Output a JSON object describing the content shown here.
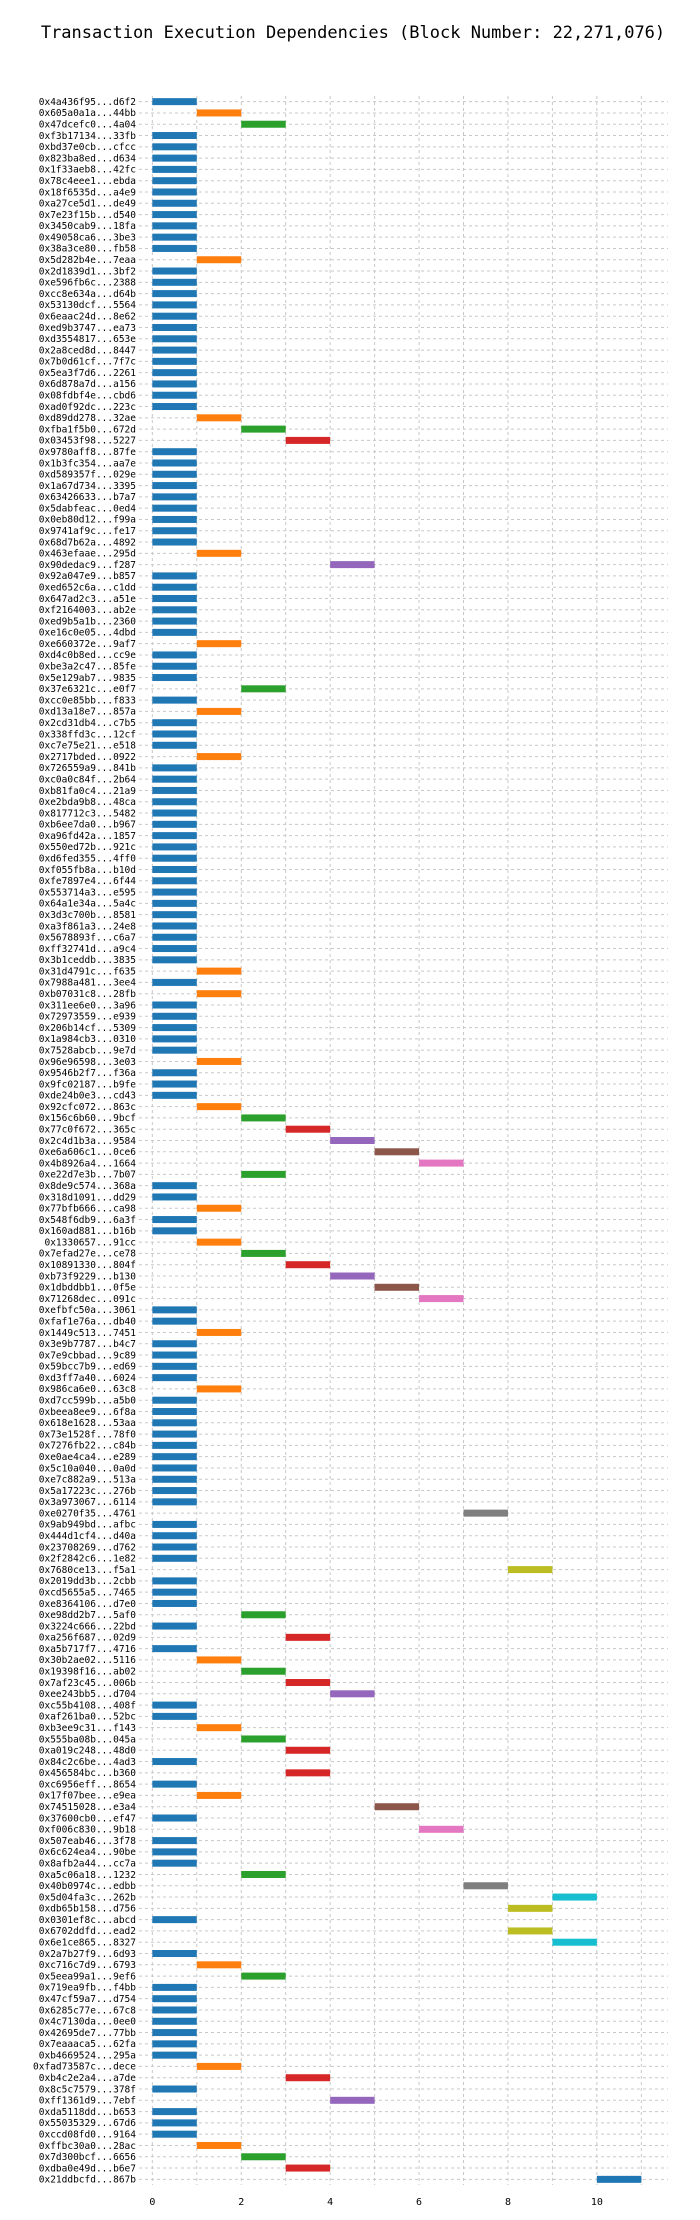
{
  "chart_data": {
    "type": "bar",
    "orientation": "horizontal",
    "title": "Transaction Execution Dependencies (Block Number: 22,271,076)",
    "xlabel": "",
    "ylabel": "",
    "xlim": [
      -0.3,
      11.6
    ],
    "xticks": [
      0,
      2,
      4,
      6,
      8,
      10
    ],
    "grid": true,
    "colors": [
      "#1f77b4",
      "#ff7f0e",
      "#2ca02c",
      "#d62728",
      "#9467bd",
      "#8c564b",
      "#e377c2",
      "#7f7f7f",
      "#bcbd22",
      "#17becf"
    ],
    "tx": [
      [
        "0x4a436f95...d6f2",
        0
      ],
      [
        "0x605a0a1a...44bb",
        1
      ],
      [
        "0x47dcefc0...4a04",
        2
      ],
      [
        "0xf3b17134...33fb",
        0
      ],
      [
        "0xbd37e0cb...cfcc",
        0
      ],
      [
        "0x823ba8ed...d634",
        0
      ],
      [
        "0x1f33aeb8...42fc",
        0
      ],
      [
        "0x78c4eee1...ebda",
        0
      ],
      [
        "0x18f6535d...a4e9",
        0
      ],
      [
        "0xa27ce5d1...de49",
        0
      ],
      [
        "0x7e23f15b...d540",
        0
      ],
      [
        "0x3450cab9...18fa",
        0
      ],
      [
        "0x49058ca6...3be3",
        0
      ],
      [
        "0x38a3ce80...fb58",
        0
      ],
      [
        "0x5d282b4e...7eaa",
        1
      ],
      [
        "0x2d1839d1...3bf2",
        0
      ],
      [
        "0xe596fb6c...2388",
        0
      ],
      [
        "0xcc8e634a...d64b",
        0
      ],
      [
        "0x53130dcf...5564",
        0
      ],
      [
        "0x6eaac24d...8e62",
        0
      ],
      [
        "0xed9b3747...ea73",
        0
      ],
      [
        "0xd3554817...653e",
        0
      ],
      [
        "0x2a8ced8d...8447",
        0
      ],
      [
        "0x7b0d61cf...7f7c",
        0
      ],
      [
        "0x5ea3f7d6...2261",
        0
      ],
      [
        "0x6d878a7d...a156",
        0
      ],
      [
        "0x08fdbf4e...cbd6",
        0
      ],
      [
        "0xad0f92dc...223c",
        0
      ],
      [
        "0xd89dd278...32ae",
        1
      ],
      [
        "0xfba1f5b0...672d",
        2
      ],
      [
        "0x03453f98...5227",
        3
      ],
      [
        "0x9780aff8...87fe",
        0
      ],
      [
        "0x1b3fc354...aa7e",
        0
      ],
      [
        "0xd589357f...029e",
        0
      ],
      [
        "0x1a67d734...3395",
        0
      ],
      [
        "0x63426633...b7a7",
        0
      ],
      [
        "0x5dabfeac...0ed4",
        0
      ],
      [
        "0x0eb80d12...f99a",
        0
      ],
      [
        "0x9741af9c...fe17",
        0
      ],
      [
        "0x68d7b62a...4892",
        0
      ],
      [
        "0x463efaae...295d",
        1
      ],
      [
        "0x90dedac9...f287",
        4
      ],
      [
        "0x92a047e9...b857",
        0
      ],
      [
        "0xed652c6a...c1dd",
        0
      ],
      [
        "0x647ad2c3...a51e",
        0
      ],
      [
        "0xf2164003...ab2e",
        0
      ],
      [
        "0xed9b5a1b...2360",
        0
      ],
      [
        "0xe16c0e05...4dbd",
        0
      ],
      [
        "0xe660372e...9af7",
        1
      ],
      [
        "0xd4c0b8ed...cc9e",
        0
      ],
      [
        "0xbe3a2c47...85fe",
        0
      ],
      [
        "0x5e129ab7...9835",
        0
      ],
      [
        "0x37e6321c...e0f7",
        2
      ],
      [
        "0xcc0e85bb...f833",
        0
      ],
      [
        "0xd13a18e7...857a",
        1
      ],
      [
        "0x2cd31db4...c7b5",
        0
      ],
      [
        "0x338ffd3c...12cf",
        0
      ],
      [
        "0xc7e75e21...e518",
        0
      ],
      [
        "0x2717bded...0922",
        1
      ],
      [
        "0x726559a9...841b",
        0
      ],
      [
        "0xc0a0c84f...2b64",
        0
      ],
      [
        "0xb81fa0c4...21a9",
        0
      ],
      [
        "0xe2bda9b8...48ca",
        0
      ],
      [
        "0x817712c3...5482",
        0
      ],
      [
        "0xb6ee7da0...b967",
        0
      ],
      [
        "0xa96fd42a...1857",
        0
      ],
      [
        "0x550ed72b...921c",
        0
      ],
      [
        "0xd6fed355...4ff0",
        0
      ],
      [
        "0xf055fb8a...b10d",
        0
      ],
      [
        "0xfe7897e4...6f44",
        0
      ],
      [
        "0x553714a3...e595",
        0
      ],
      [
        "0x64a1e34a...5a4c",
        0
      ],
      [
        "0x3d3c700b...8581",
        0
      ],
      [
        "0xa3f861a3...24e8",
        0
      ],
      [
        "0x5678893f...c6a7",
        0
      ],
      [
        "0xff32741d...a9c4",
        0
      ],
      [
        "0x3b1ceddb...3835",
        0
      ],
      [
        "0x31d4791c...f635",
        1
      ],
      [
        "0x7988a481...3ee4",
        0
      ],
      [
        "0xb07031c8...28fb",
        1
      ],
      [
        "0x311ee6e0...3a96",
        0
      ],
      [
        "0x72973559...e939",
        0
      ],
      [
        "0x206b14cf...5309",
        0
      ],
      [
        "0x1a984cb3...0310",
        0
      ],
      [
        "0x7528abcb...9e7d",
        0
      ],
      [
        "0x96e96598...3e03",
        1
      ],
      [
        "0x9546b2f7...f36a",
        0
      ],
      [
        "0x9fc02187...b9fe",
        0
      ],
      [
        "0xde24b0e3...cd43",
        0
      ],
      [
        "0x92cfc072...863c",
        1
      ],
      [
        "0x156c6b60...9bcf",
        2
      ],
      [
        "0x77c0f672...365c",
        3
      ],
      [
        "0x2c4d1b3a...9584",
        4
      ],
      [
        "0xe6a606c1...0ce6",
        5
      ],
      [
        "0x4b8926a4...1664",
        6
      ],
      [
        "0xe22d7e3b...7b07",
        2
      ],
      [
        "0x8de9c574...368a",
        0
      ],
      [
        "0x318d1091...dd29",
        0
      ],
      [
        "0x77bfb666...ca98",
        1
      ],
      [
        "0x548f6db9...6a3f",
        0
      ],
      [
        "0x160ad881...b16b",
        0
      ],
      [
        "0x1330657...91cc",
        1
      ],
      [
        "0x7efad27e...ce78",
        2
      ],
      [
        "0x10891330...804f",
        3
      ],
      [
        "0xb73f9229...b130",
        4
      ],
      [
        "0x1dbddbb1...0f5e",
        5
      ],
      [
        "0x71268dec...091c",
        6
      ],
      [
        "0xefbfc50a...3061",
        0
      ],
      [
        "0xfaf1e76a...db40",
        0
      ],
      [
        "0x1449c513...7451",
        1
      ],
      [
        "0x3e9b7787...b4c7",
        0
      ],
      [
        "0x7e9cbbad...9c89",
        0
      ],
      [
        "0x59bcc7b9...ed69",
        0
      ],
      [
        "0xd3ff7a40...6024",
        0
      ],
      [
        "0x986ca6e0...63c8",
        1
      ],
      [
        "0xd7cc599b...a5b0",
        0
      ],
      [
        "0xbeea8ee9...6f8a",
        0
      ],
      [
        "0x618e1628...53aa",
        0
      ],
      [
        "0x73e1528f...78f0",
        0
      ],
      [
        "0x7276fb22...c84b",
        0
      ],
      [
        "0xe0ae4ca4...e289",
        0
      ],
      [
        "0x5c10a040...0a0d",
        0
      ],
      [
        "0xe7c882a9...513a",
        0
      ],
      [
        "0x5a17223c...276b",
        0
      ],
      [
        "0x3a973067...6114",
        0
      ],
      [
        "0xe0270f35...4761",
        7
      ],
      [
        "0x9ab949bd...afbc",
        0
      ],
      [
        "0x444d1cf4...d40a",
        0
      ],
      [
        "0x23708269...d762",
        0
      ],
      [
        "0x2f2842c6...1e82",
        0
      ],
      [
        "0x7680ce13...f5a1",
        8
      ],
      [
        "0x2019dd3b...2cbb",
        0
      ],
      [
        "0xcd5655a5...7465",
        0
      ],
      [
        "0xe8364106...d7e0",
        0
      ],
      [
        "0xe98dd2b7...5af0",
        2
      ],
      [
        "0x3224c666...22bd",
        0
      ],
      [
        "0xa256f687...02d9",
        3
      ],
      [
        "0xa5b717f7...4716",
        0
      ],
      [
        "0x30b2ae02...5116",
        1
      ],
      [
        "0x19398f16...ab02",
        2
      ],
      [
        "0x7af23c45...006b",
        3
      ],
      [
        "0xee243bb5...d704",
        4
      ],
      [
        "0xc55b4108...408f",
        0
      ],
      [
        "0xaf261ba0...52bc",
        0
      ],
      [
        "0xb3ee9c31...f143",
        1
      ],
      [
        "0x555ba08b...045a",
        2
      ],
      [
        "0xa019c248...48d0",
        3
      ],
      [
        "0x84c2c6be...4ad3",
        0
      ],
      [
        "0x456584bc...b360",
        3
      ],
      [
        "0xc6956eff...8654",
        0
      ],
      [
        "0x17f07bee...e9ea",
        1
      ],
      [
        "0x74515028...e3a4",
        5
      ],
      [
        "0x37600cb0...ef47",
        0
      ],
      [
        "0xf006c830...9b18",
        6
      ],
      [
        "0x507eab46...3f78",
        0
      ],
      [
        "0x6c624ea4...90be",
        0
      ],
      [
        "0x8afb2a44...cc7a",
        0
      ],
      [
        "0xa5c06a18...1232",
        2
      ],
      [
        "0x40b0974c...edbb",
        7
      ],
      [
        "0x5d04fa3c...262b",
        9
      ],
      [
        "0xdb65b158...d756",
        8
      ],
      [
        "0x0301ef8c...abcd",
        0
      ],
      [
        "0x6702ddfd...ead2",
        8
      ],
      [
        "0x6e1ce865...8327",
        9
      ],
      [
        "0x2a7b27f9...6d93",
        0
      ],
      [
        "0xc716c7d9...6793",
        1
      ],
      [
        "0x5eea99a1...9ef6",
        2
      ],
      [
        "0x719ea9fb...f4bb",
        0
      ],
      [
        "0x47cf59a7...d754",
        0
      ],
      [
        "0x6285c77e...67c8",
        0
      ],
      [
        "0x4c7130da...0ee0",
        0
      ],
      [
        "0x42695de7...77bb",
        0
      ],
      [
        "0x7eaaaca5...62fa",
        0
      ],
      [
        "0xb4669524...295a",
        0
      ],
      [
        "0xfad73587c...dece",
        1
      ],
      [
        "0xb4c2e2a4...a7de",
        3
      ],
      [
        "0x8c5c7579...378f",
        0
      ],
      [
        "0xff1361d9...7ebf",
        4
      ],
      [
        "0xda5118dd...b653",
        0
      ],
      [
        "0x55035329...67d6",
        0
      ],
      [
        "0xccd08fd0...9164",
        0
      ],
      [
        "0xffbc30a0...28ac",
        1
      ],
      [
        "0x7d300bcf...6656",
        2
      ],
      [
        "0xdba0e49d...b6e7",
        3
      ],
      [
        "0x21ddbcfd...867b",
        10
      ]
    ]
  }
}
